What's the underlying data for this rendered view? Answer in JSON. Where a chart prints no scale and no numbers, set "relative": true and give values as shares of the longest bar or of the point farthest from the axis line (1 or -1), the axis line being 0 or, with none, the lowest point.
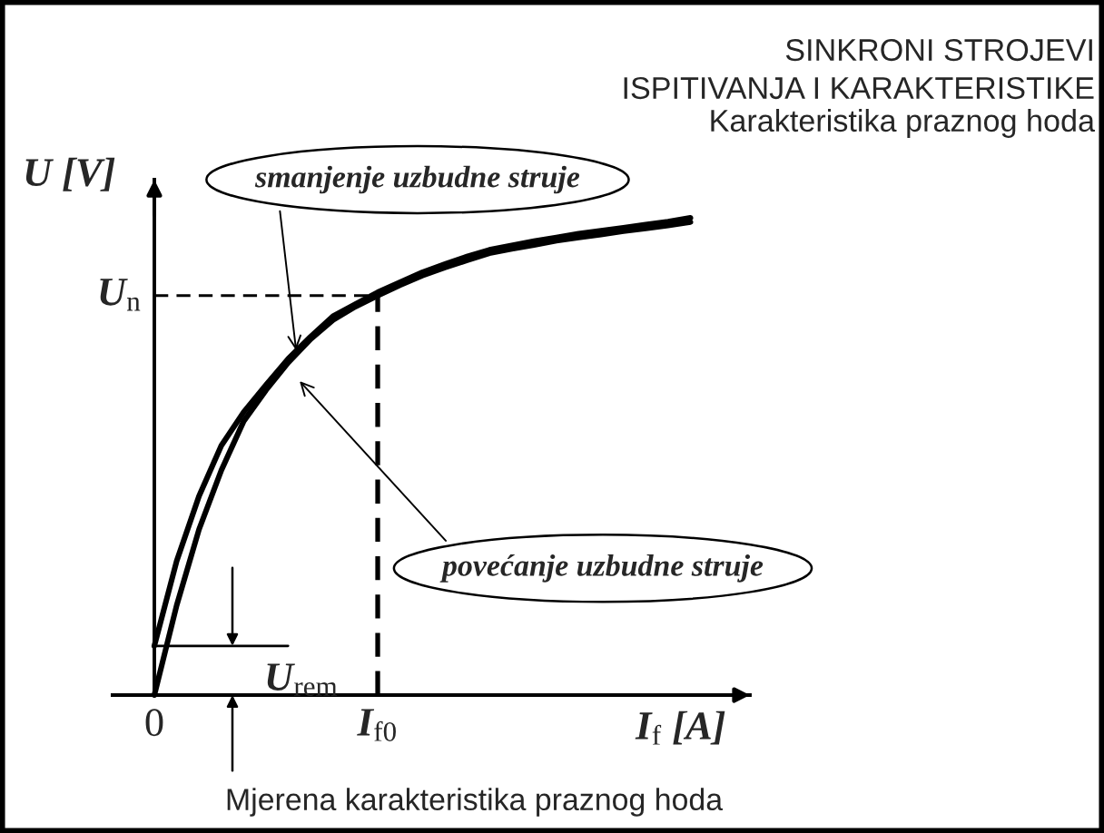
{
  "chart_data": {
    "type": "line",
    "relative": true,
    "title": "SINKRONI STROJEVI",
    "subtitle": "ISPITIVANJA I KARAKTERISTIKE\nKarakteristika praznog hoda",
    "xlabel": "I$_{f}$ [A]",
    "ylabel": "U [V]",
    "categories": [
      "0",
      null,
      null,
      null,
      null,
      null,
      null,
      null,
      null,
      null,
      "I$_{f0}$",
      null,
      null,
      null,
      null,
      null,
      null,
      null,
      null,
      null,
      null,
      null,
      null,
      null,
      null
    ],
    "series": [
      {
        "color": "#000000",
        "values": [
          0,
          0.188,
          0.347,
          0.471,
          0.574,
          0.639,
          0.697,
          0.746,
          0.786,
          0.814,
          0.837,
          0.859,
          0.879,
          0.896,
          0.911,
          0.926,
          0.935,
          0.943,
          0.952,
          0.959,
          0.965,
          0.972,
          0.978,
          0.984,
          0.991
        ]
      },
      {
        "color": "#000000",
        "values": [
          0.103,
          0.281,
          0.417,
          0.523,
          0.593,
          0.65,
          0.705,
          0.751,
          0.794,
          0.819,
          0.844,
          0.865,
          0.886,
          0.903,
          0.919,
          0.933,
          0.942,
          0.951,
          0.959,
          0.967,
          0.973,
          0.979,
          0.986,
          0.992,
          1
        ]
      }
    ],
    "ref_lines": [
      {
        "axis": "x",
        "value": "I$_{f0}$",
        "line_style": "dashed"
      },
      {
        "axis": "y",
        "value": 0.837,
        "label": "U$_{n}$",
        "line_style": "dashed"
      }
    ],
    "annotations": [
      "smanjenje uzbudne struje",
      "povećanje uzbudne struje",
      {
        "text": "U$_{rem}$",
        "x": "0",
        "y": 0.103
      },
      "Mjerena karakteristika praznog hoda"
    ]
  }
}
